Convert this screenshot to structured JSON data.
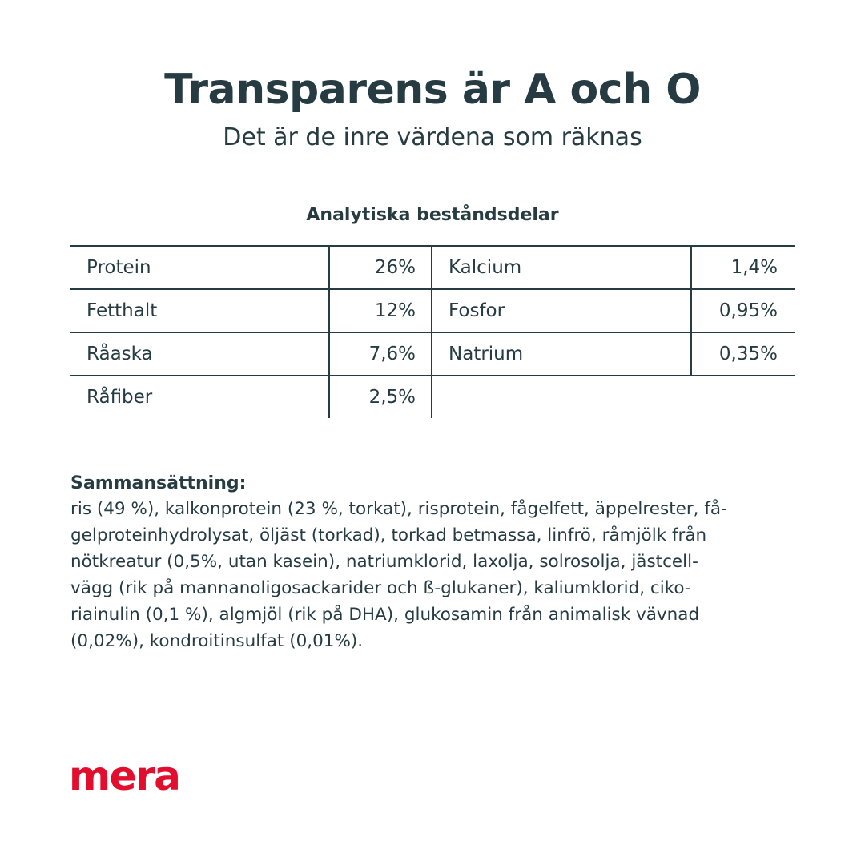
{
  "title": "Transparens är A och O",
  "subtitle": "Det är de inre värdena som räknas",
  "analysis": {
    "heading": "Analytiska beståndsdelar",
    "left": [
      {
        "label": "Protein",
        "value": "26%"
      },
      {
        "label": "Fetthalt",
        "value": "12%"
      },
      {
        "label": "Råaska",
        "value": "7,6%"
      },
      {
        "label": "Råfiber",
        "value": "2,5%"
      }
    ],
    "right": [
      {
        "label": "Kalcium",
        "value": "1,4%"
      },
      {
        "label": "Fosfor",
        "value": "0,95%"
      },
      {
        "label": "Natrium",
        "value": "0,35%"
      }
    ]
  },
  "composition": {
    "heading": "Sammansättning:",
    "lines": [
      "ris (49 %), kalkonprotein (23 %, torkat), risprotein, fågelfett, äppelrester, få-",
      "gelproteinhydrolysat, öljäst (torkad), torkad betmassa, linfrö, råmjölk från",
      "nötkreatur (0,5%, utan kasein), natriumklorid, laxolja, solrosolja, jästcell-",
      "vägg (rik på mannanoligosackarider och ß-glukaner), kaliumklorid, ciko-",
      "riainulin (0,1 %), algmjöl (rik på DHA), glukosamin från animalisk vävnad",
      "(0,02%), kondroitinsulfat (0,01%)."
    ]
  },
  "brand": {
    "logo_text": "mera",
    "color": "#e30d2e"
  },
  "text_color": "#263c42"
}
